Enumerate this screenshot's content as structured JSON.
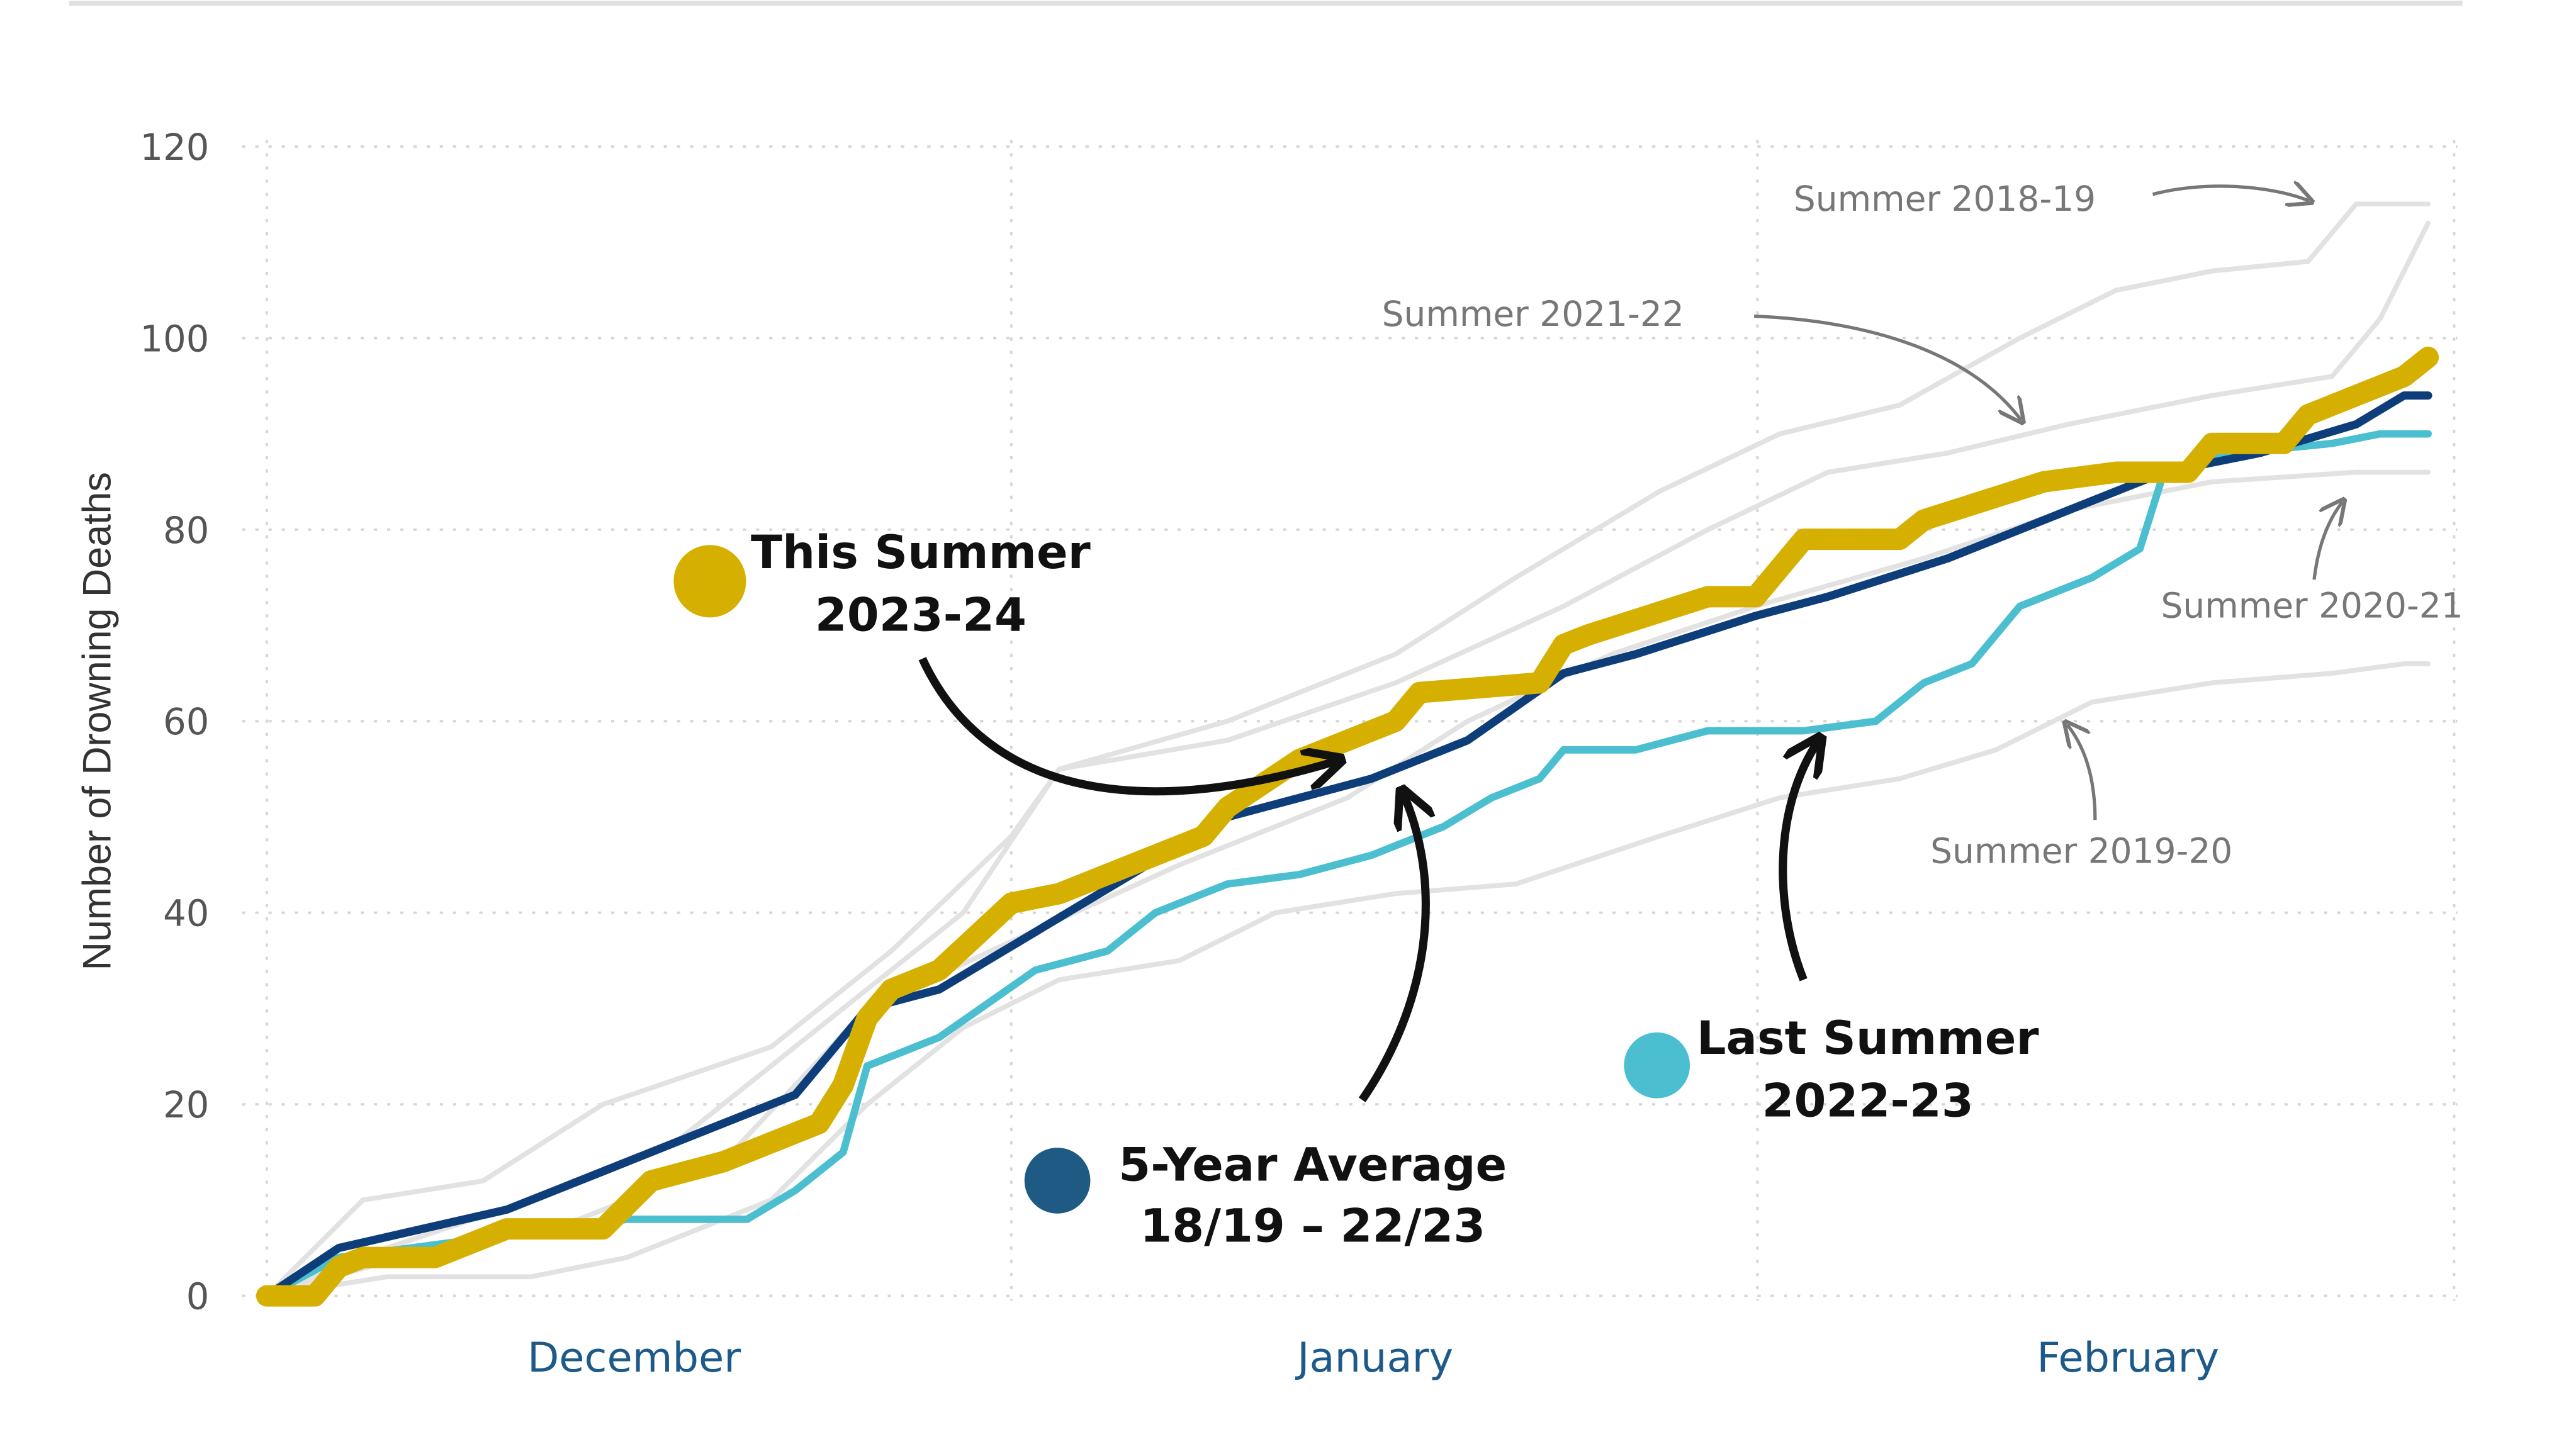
{
  "chart_data": {
    "type": "line",
    "title": "",
    "xlabel": "",
    "ylabel": "Number of Drowning Deaths",
    "ylim": [
      0,
      120
    ],
    "yticks": [
      0,
      20,
      40,
      60,
      80,
      100,
      120
    ],
    "xtick_labels": [
      "December",
      "January",
      "February"
    ],
    "grid": true,
    "series": [
      {
        "name": "Summer 2018-19",
        "color": "#e2e2e2",
        "points": [
          [
            "Dec 1",
            0
          ],
          [
            "Dec 5",
            10
          ],
          [
            "Dec 10",
            12
          ],
          [
            "Dec 15",
            20
          ],
          [
            "Dec 22",
            26
          ],
          [
            "Dec 27",
            36
          ],
          [
            "Jan 1",
            48
          ],
          [
            "Jan 3",
            55
          ],
          [
            "Jan 10",
            60
          ],
          [
            "Jan 17",
            67
          ],
          [
            "Jan 22",
            75
          ],
          [
            "Jan 28",
            84
          ],
          [
            "Feb 2",
            90
          ],
          [
            "Feb 7",
            93
          ],
          [
            "Feb 12",
            100
          ],
          [
            "Feb 16",
            105
          ],
          [
            "Feb 20",
            107
          ],
          [
            "Feb 24",
            108
          ],
          [
            "Feb 26",
            114
          ],
          [
            "Feb 29",
            114
          ]
        ]
      },
      {
        "name": "Summer 2021-22",
        "color": "#e2e2e2",
        "points": [
          [
            "Dec 1",
            0
          ],
          [
            "Dec 6",
            5
          ],
          [
            "Dec 12",
            10
          ],
          [
            "Dec 18",
            16
          ],
          [
            "Dec 24",
            28
          ],
          [
            "Dec 30",
            40
          ],
          [
            "Jan 3",
            55
          ],
          [
            "Jan 10",
            58
          ],
          [
            "Jan 17",
            64
          ],
          [
            "Jan 24",
            72
          ],
          [
            "Jan 30",
            80
          ],
          [
            "Feb 4",
            86
          ],
          [
            "Feb 9",
            88
          ],
          [
            "Feb 14",
            91
          ],
          [
            "Feb 20",
            94
          ],
          [
            "Feb 25",
            96
          ],
          [
            "Feb 27",
            102
          ],
          [
            "Feb 29",
            112
          ]
        ]
      },
      {
        "name": "Summer 2020-21",
        "color": "#e2e2e2",
        "points": [
          [
            "Dec 1",
            0
          ],
          [
            "Dec 8",
            5
          ],
          [
            "Dec 14",
            8
          ],
          [
            "Dec 20",
            14
          ],
          [
            "Dec 26",
            30
          ],
          [
            "Jan 1",
            37
          ],
          [
            "Jan 8",
            45
          ],
          [
            "Jan 15",
            52
          ],
          [
            "Jan 20",
            60
          ],
          [
            "Jan 26",
            67
          ],
          [
            "Feb 1",
            72
          ],
          [
            "Feb 8",
            77
          ],
          [
            "Feb 14",
            82
          ],
          [
            "Feb 20",
            85
          ],
          [
            "Feb 26",
            86
          ],
          [
            "Feb 29",
            86
          ]
        ]
      },
      {
        "name": "Summer 2019-20",
        "color": "#e2e2e2",
        "points": [
          [
            "Dec 1",
            0
          ],
          [
            "Dec 6",
            2
          ],
          [
            "Dec 12",
            2
          ],
          [
            "Dec 16",
            4
          ],
          [
            "Dec 22",
            10
          ],
          [
            "Dec 26",
            20
          ],
          [
            "Dec 30",
            28
          ],
          [
            "Jan 3",
            33
          ],
          [
            "Jan 8",
            35
          ],
          [
            "Jan 12",
            40
          ],
          [
            "Jan 17",
            42
          ],
          [
            "Jan 22",
            43
          ],
          [
            "Jan 28",
            48
          ],
          [
            "Feb 2",
            52
          ],
          [
            "Feb 7",
            54
          ],
          [
            "Feb 11",
            57
          ],
          [
            "Feb 15",
            62
          ],
          [
            "Feb 20",
            64
          ],
          [
            "Feb 25",
            65
          ],
          [
            "Feb 28",
            66
          ],
          [
            "Feb 29",
            66
          ]
        ]
      },
      {
        "name": "Last Summer 2022-23",
        "color": "#4bbfd0",
        "points": [
          [
            "Dec 1",
            0
          ],
          [
            "Dec 4",
            4
          ],
          [
            "Dec 10",
            6
          ],
          [
            "Dec 16",
            8
          ],
          [
            "Dec 21",
            8
          ],
          [
            "Dec 23",
            11
          ],
          [
            "Dec 25",
            15
          ],
          [
            "Dec 26",
            24
          ],
          [
            "Dec 29",
            27
          ],
          [
            "Jan 2",
            34
          ],
          [
            "Jan 5",
            36
          ],
          [
            "Jan 7",
            40
          ],
          [
            "Jan 10",
            43
          ],
          [
            "Jan 13",
            44
          ],
          [
            "Jan 16",
            46
          ],
          [
            "Jan 19",
            49
          ],
          [
            "Jan 21",
            52
          ],
          [
            "Jan 23",
            54
          ],
          [
            "Jan 24",
            57
          ],
          [
            "Jan 27",
            57
          ],
          [
            "Jan 30",
            59
          ],
          [
            "Feb 3",
            59
          ],
          [
            "Feb 6",
            60
          ],
          [
            "Feb 8",
            64
          ],
          [
            "Feb 10",
            66
          ],
          [
            "Feb 12",
            72
          ],
          [
            "Feb 15",
            75
          ],
          [
            "Feb 17",
            78
          ],
          [
            "Feb 18",
            86
          ],
          [
            "Feb 21",
            88
          ],
          [
            "Feb 25",
            89
          ],
          [
            "Feb 27",
            90
          ],
          [
            "Feb 29",
            90
          ]
        ]
      },
      {
        "name": "5-Year Average 18/19 – 22/23",
        "color": "#0e3e7a",
        "points": [
          [
            "Dec 1",
            0
          ],
          [
            "Dec 4",
            5
          ],
          [
            "Dec 11",
            9
          ],
          [
            "Dec 15",
            13
          ],
          [
            "Dec 19",
            17
          ],
          [
            "Dec 23",
            21
          ],
          [
            "Dec 26",
            30
          ],
          [
            "Dec 29",
            32
          ],
          [
            "Jan 2",
            38
          ],
          [
            "Jan 6",
            44
          ],
          [
            "Jan 10",
            50
          ],
          [
            "Jan 16",
            54
          ],
          [
            "Jan 20",
            58
          ],
          [
            "Jan 24",
            65
          ],
          [
            "Jan 27",
            67
          ],
          [
            "Feb 1",
            71
          ],
          [
            "Feb 4",
            73
          ],
          [
            "Feb 9",
            77
          ],
          [
            "Feb 14",
            82
          ],
          [
            "Feb 18",
            86
          ],
          [
            "Feb 22",
            88
          ],
          [
            "Feb 26",
            91
          ],
          [
            "Feb 28",
            94
          ],
          [
            "Feb 29",
            94
          ]
        ]
      },
      {
        "name": "This Summer 2023-24",
        "color": "#d6b000",
        "points": [
          [
            "Dec 1",
            0
          ],
          [
            "Dec 3",
            0
          ],
          [
            "Dec 4",
            3
          ],
          [
            "Dec 5",
            4
          ],
          [
            "Dec 8",
            4
          ],
          [
            "Dec 11",
            7
          ],
          [
            "Dec 15",
            7
          ],
          [
            "Dec 17",
            12
          ],
          [
            "Dec 20",
            14
          ],
          [
            "Dec 24",
            18
          ],
          [
            "Dec 25",
            22
          ],
          [
            "Dec 26",
            29
          ],
          [
            "Dec 27",
            32
          ],
          [
            "Dec 29",
            34
          ],
          [
            "Jan 1",
            41
          ],
          [
            "Jan 3",
            42
          ],
          [
            "Jan 9",
            48
          ],
          [
            "Jan 10",
            51
          ],
          [
            "Jan 13",
            56
          ],
          [
            "Jan 17",
            60
          ],
          [
            "Jan 18",
            63
          ],
          [
            "Jan 23",
            64
          ],
          [
            "Jan 24",
            68
          ],
          [
            "Jan 25",
            69
          ],
          [
            "Jan 30",
            73
          ],
          [
            "Feb 1",
            73
          ],
          [
            "Feb 3",
            79
          ],
          [
            "Feb 7",
            79
          ],
          [
            "Feb 8",
            81
          ],
          [
            "Feb 13",
            85
          ],
          [
            "Feb 16",
            86
          ],
          [
            "Feb 19",
            86
          ],
          [
            "Feb 20",
            89
          ],
          [
            "Feb 23",
            89
          ],
          [
            "Feb 24",
            92
          ],
          [
            "Feb 28",
            96
          ],
          [
            "Feb 29",
            98
          ]
        ]
      }
    ],
    "annotations": {
      "this_summer": [
        "This Summer",
        "2023-24"
      ],
      "five_year": [
        "5-Year Average",
        "18/19 – 22/23"
      ],
      "last_summer": [
        "Last Summer",
        "2022-23"
      ],
      "s1819": "Summer 2018-19",
      "s2122": "Summer 2021-22",
      "s2021": "Summer 2020-21",
      "s1920": "Summer 2019-20"
    },
    "legend_colors": {
      "this_summer": "#d6b000",
      "five_year": "#1f5a85",
      "last_summer": "#4bbfd0"
    }
  }
}
